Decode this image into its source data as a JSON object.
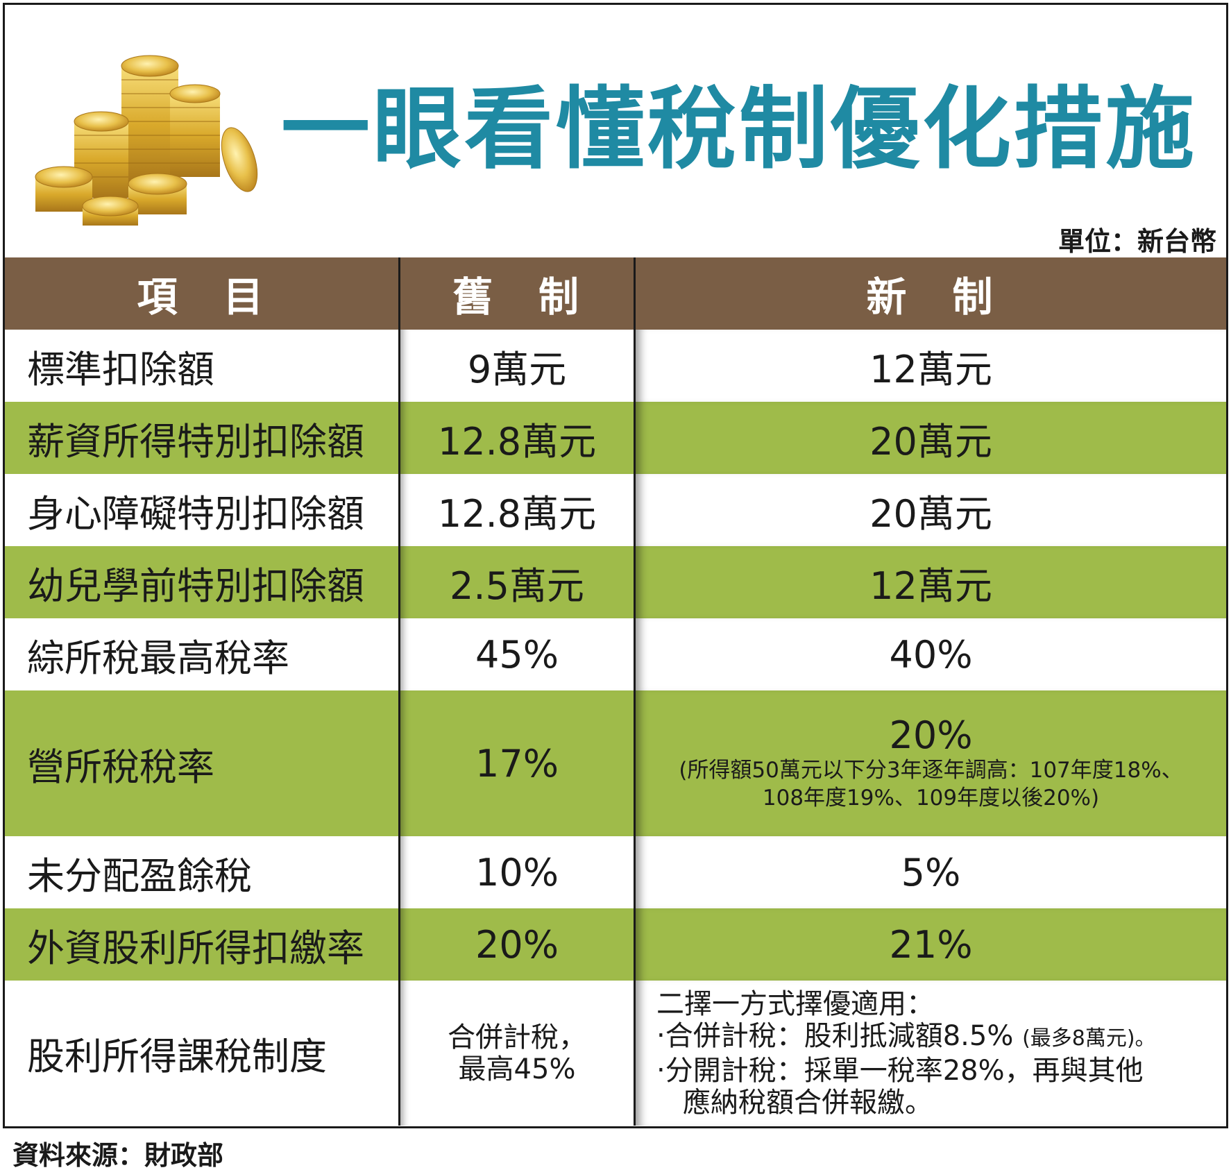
{
  "title": "一眼看懂稅制優化措施",
  "unit": "單位：新台幣",
  "headers": {
    "item": "項　目",
    "old": "舊　制",
    "new": "新　制"
  },
  "rows": [
    {
      "item": "標準扣除額",
      "old": "9萬元",
      "new": "12萬元"
    },
    {
      "item": "薪資所得特別扣除額",
      "old": "12.8萬元",
      "new": "20萬元"
    },
    {
      "item": "身心障礙特別扣除額",
      "old": "12.8萬元",
      "new": "20萬元"
    },
    {
      "item": "幼兒學前特別扣除額",
      "old": "2.5萬元",
      "new": "12萬元"
    },
    {
      "item": "綜所稅最高稅率",
      "old": "45%",
      "new": "40%"
    },
    {
      "item": "營所稅稅率",
      "old": "17%",
      "new": "20%",
      "new_note_1": "(所得額50萬元以下分3年逐年調高：107年度18%、",
      "new_note_2": "108年度19%、109年度以後20%)"
    },
    {
      "item": "未分配盈餘稅",
      "old": "10%",
      "new": "5%"
    },
    {
      "item": "外資股利所得扣繳率",
      "old": "20%",
      "new": "21%"
    },
    {
      "item": "股利所得課稅制度",
      "old_line1": "合併計稅，",
      "old_line2": "最高45%",
      "new_intro": "二擇一方式擇優適用：",
      "new_b1": "‧合併計稅：股利抵減額8.5%",
      "new_b1_note": "(最多8萬元)。",
      "new_b2": "‧分開計稅：採單一稅率28%，再與其他",
      "new_b3": "應納稅額合併報繳。"
    }
  ],
  "source": "資料來源：財政部",
  "colors": {
    "title": "#1f8aa3",
    "header_bg": "#7a5e45",
    "green_row": "#9fbb4a"
  },
  "icons": [
    "gold-coins-illustration"
  ]
}
